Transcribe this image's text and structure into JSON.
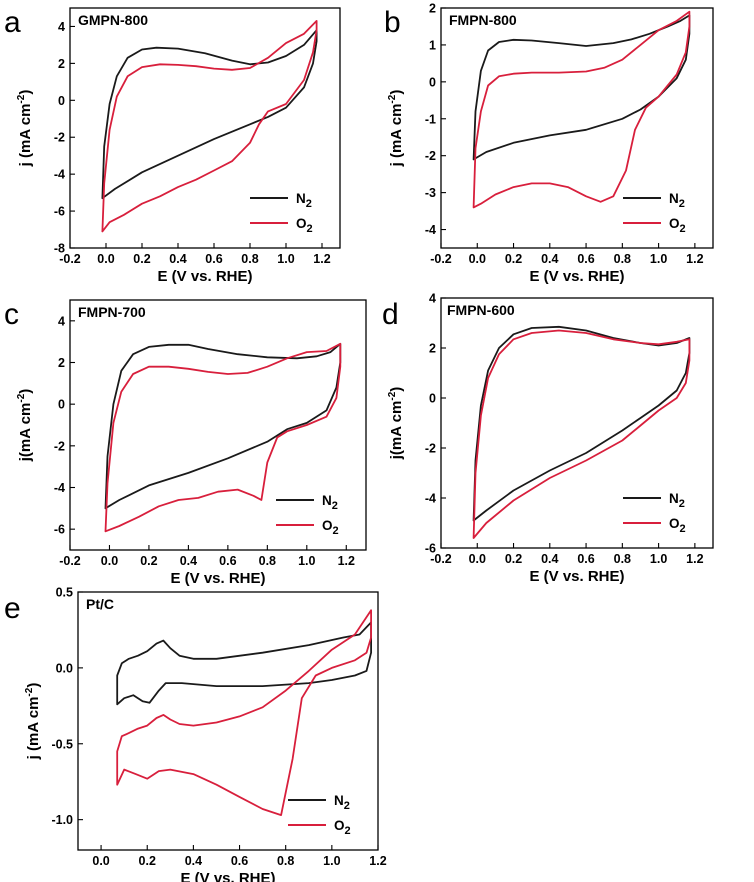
{
  "colors": {
    "N2": "#1a1a1a",
    "O2": "#d81f3c",
    "axis": "#000000"
  },
  "legend": {
    "N2": "N",
    "N2_sub": "2",
    "O2": "O",
    "O2_sub": "2"
  },
  "chart_data": [
    {
      "panel": "a",
      "type": "line",
      "title": "GMPN-800",
      "xlabel": "E (V vs. RHE)",
      "ylabel": "j (mA cm-2)",
      "xlim": [
        -0.2,
        1.3
      ],
      "ylim": [
        -8,
        5
      ],
      "xticks": [
        -0.2,
        0.0,
        0.2,
        0.4,
        0.6,
        0.8,
        1.0,
        1.2
      ],
      "xtick_labels": [
        "-0.2",
        "0.0",
        "0.2",
        "0.4",
        "0.6",
        "0.8",
        "1.0",
        "1.2"
      ],
      "yticks": [
        -8,
        -6,
        -4,
        -2,
        0,
        2,
        4
      ],
      "ytick_labels": [
        "-8",
        "-6",
        "-4",
        "-2",
        "0",
        "2",
        "4"
      ],
      "legend_position": "bottom-right",
      "series": [
        {
          "name": "N2",
          "color": "#1a1a1a",
          "x": [
            -0.02,
            -0.01,
            0.02,
            0.06,
            0.12,
            0.2,
            0.28,
            0.4,
            0.55,
            0.7,
            0.8,
            0.9,
            1.0,
            1.1,
            1.17,
            1.17,
            1.15,
            1.1,
            1.0,
            0.9,
            0.8,
            0.6,
            0.4,
            0.2,
            0.05,
            -0.02
          ],
          "y": [
            -5.3,
            -2.5,
            -0.2,
            1.3,
            2.3,
            2.75,
            2.85,
            2.8,
            2.55,
            2.15,
            1.95,
            2.05,
            2.4,
            3.0,
            3.8,
            3.2,
            2.0,
            0.7,
            -0.4,
            -0.9,
            -1.3,
            -2.1,
            -3.0,
            -3.9,
            -4.8,
            -5.3
          ]
        },
        {
          "name": "O2",
          "color": "#d81f3c",
          "x": [
            -0.02,
            -0.01,
            0.02,
            0.06,
            0.12,
            0.2,
            0.3,
            0.4,
            0.5,
            0.6,
            0.7,
            0.8,
            0.9,
            1.0,
            1.1,
            1.17,
            1.17,
            1.15,
            1.1,
            1.0,
            0.9,
            0.85,
            0.8,
            0.7,
            0.6,
            0.5,
            0.4,
            0.3,
            0.2,
            0.1,
            0.02,
            -0.02
          ],
          "y": [
            -7.1,
            -4.5,
            -1.6,
            0.2,
            1.3,
            1.8,
            1.95,
            1.92,
            1.85,
            1.72,
            1.65,
            1.75,
            2.3,
            3.1,
            3.6,
            4.3,
            3.8,
            2.6,
            1.1,
            -0.2,
            -0.6,
            -1.3,
            -2.3,
            -3.3,
            -3.8,
            -4.3,
            -4.7,
            -5.2,
            -5.6,
            -6.2,
            -6.6,
            -7.1
          ]
        }
      ]
    },
    {
      "panel": "b",
      "type": "line",
      "title": "FMPN-800",
      "xlabel": "E (V vs. RHE)",
      "ylabel": "j (mA cm-2)",
      "xlim": [
        -0.2,
        1.3
      ],
      "ylim": [
        -4.5,
        2
      ],
      "xticks": [
        -0.2,
        0.0,
        0.2,
        0.4,
        0.6,
        0.8,
        1.0,
        1.2
      ],
      "xtick_labels": [
        "-0.2",
        "0.0",
        "0.2",
        "0.4",
        "0.6",
        "0.8",
        "1.0",
        "1.2"
      ],
      "yticks": [
        -4,
        -3,
        -2,
        -1,
        0,
        1,
        2
      ],
      "ytick_labels": [
        "-4",
        "-3",
        "-2",
        "-1",
        "0",
        "1",
        "2"
      ],
      "legend_position": "bottom-right",
      "series": [
        {
          "name": "N2",
          "color": "#1a1a1a",
          "x": [
            -0.02,
            -0.01,
            0.02,
            0.06,
            0.12,
            0.2,
            0.3,
            0.45,
            0.6,
            0.75,
            0.85,
            0.95,
            1.05,
            1.12,
            1.17,
            1.17,
            1.15,
            1.1,
            1.0,
            0.9,
            0.8,
            0.6,
            0.4,
            0.2,
            0.05,
            -0.02
          ],
          "y": [
            -2.1,
            -0.8,
            0.3,
            0.85,
            1.08,
            1.14,
            1.12,
            1.05,
            0.97,
            1.05,
            1.15,
            1.3,
            1.5,
            1.65,
            1.8,
            1.3,
            0.6,
            0.1,
            -0.4,
            -0.75,
            -1.0,
            -1.3,
            -1.45,
            -1.65,
            -1.9,
            -2.1
          ]
        },
        {
          "name": "O2",
          "color": "#d81f3c",
          "x": [
            -0.02,
            -0.01,
            0.02,
            0.06,
            0.12,
            0.2,
            0.3,
            0.45,
            0.6,
            0.7,
            0.8,
            0.9,
            1.0,
            1.1,
            1.17,
            1.17,
            1.15,
            1.1,
            1.0,
            0.93,
            0.87,
            0.82,
            0.75,
            0.68,
            0.6,
            0.5,
            0.4,
            0.3,
            0.2,
            0.1,
            0.02,
            -0.02
          ],
          "y": [
            -3.4,
            -1.8,
            -0.8,
            -0.1,
            0.15,
            0.22,
            0.25,
            0.25,
            0.28,
            0.38,
            0.6,
            1.0,
            1.4,
            1.65,
            1.9,
            1.5,
            0.8,
            0.2,
            -0.4,
            -0.7,
            -1.3,
            -2.4,
            -3.1,
            -3.25,
            -3.1,
            -2.85,
            -2.75,
            -2.75,
            -2.85,
            -3.05,
            -3.3,
            -3.4
          ]
        }
      ]
    },
    {
      "panel": "c",
      "type": "line",
      "title": "FMPN-700",
      "xlabel": "E (V vs. RHE)",
      "ylabel": "j(mA cm-2)",
      "xlim": [
        -0.2,
        1.3
      ],
      "ylim": [
        -7,
        5
      ],
      "xticks": [
        -0.2,
        0.0,
        0.2,
        0.4,
        0.6,
        0.8,
        1.0,
        1.2
      ],
      "xtick_labels": [
        "-0.2",
        "0.0",
        "0.2",
        "0.4",
        "0.6",
        "0.8",
        "1.0",
        "1.2"
      ],
      "yticks": [
        -6,
        -4,
        -2,
        0,
        2,
        4
      ],
      "ytick_labels": [
        "-6",
        "-4",
        "-2",
        "0",
        "2",
        "4"
      ],
      "legend_position": "bottom-right",
      "series": [
        {
          "name": "N2",
          "color": "#1a1a1a",
          "x": [
            -0.02,
            -0.01,
            0.02,
            0.06,
            0.12,
            0.2,
            0.3,
            0.4,
            0.5,
            0.65,
            0.8,
            0.95,
            1.05,
            1.12,
            1.17,
            1.17,
            1.15,
            1.1,
            1.0,
            0.9,
            0.8,
            0.6,
            0.4,
            0.2,
            0.05,
            -0.02
          ],
          "y": [
            -5.0,
            -2.5,
            0.0,
            1.6,
            2.4,
            2.75,
            2.85,
            2.85,
            2.65,
            2.4,
            2.25,
            2.2,
            2.3,
            2.5,
            2.9,
            2.0,
            0.8,
            -0.3,
            -0.9,
            -1.2,
            -1.8,
            -2.6,
            -3.3,
            -3.9,
            -4.6,
            -5.0
          ]
        },
        {
          "name": "O2",
          "color": "#d81f3c",
          "x": [
            -0.02,
            -0.01,
            0.02,
            0.06,
            0.12,
            0.2,
            0.3,
            0.4,
            0.5,
            0.6,
            0.7,
            0.8,
            0.9,
            1.0,
            1.1,
            1.17,
            1.17,
            1.15,
            1.1,
            1.0,
            0.9,
            0.85,
            0.8,
            0.77,
            0.73,
            0.65,
            0.55,
            0.45,
            0.35,
            0.25,
            0.15,
            0.05,
            -0.02
          ],
          "y": [
            -6.1,
            -3.8,
            -0.9,
            0.6,
            1.45,
            1.8,
            1.8,
            1.7,
            1.55,
            1.45,
            1.5,
            1.8,
            2.2,
            2.5,
            2.55,
            2.9,
            1.8,
            0.3,
            -0.6,
            -1.0,
            -1.3,
            -1.6,
            -2.8,
            -4.6,
            -4.4,
            -4.1,
            -4.2,
            -4.5,
            -4.6,
            -4.9,
            -5.4,
            -5.85,
            -6.1
          ]
        }
      ]
    },
    {
      "panel": "d",
      "type": "line",
      "title": "FMPN-600",
      "xlabel": "E (V vs. RHE)",
      "ylabel": "j(mA cm-2)",
      "xlim": [
        -0.2,
        1.3
      ],
      "ylim": [
        -6,
        4
      ],
      "xticks": [
        -0.2,
        0.0,
        0.2,
        0.4,
        0.6,
        0.8,
        1.0,
        1.2
      ],
      "xtick_labels": [
        "-0.2",
        "0.0",
        "0.2",
        "0.4",
        "0.6",
        "0.8",
        "1.0",
        "1.2"
      ],
      "yticks": [
        -6,
        -4,
        -2,
        0,
        2,
        4
      ],
      "ytick_labels": [
        "-6",
        "-4",
        "-2",
        "0",
        "2",
        "4"
      ],
      "legend_position": "bottom-right",
      "series": [
        {
          "name": "N2",
          "color": "#1a1a1a",
          "x": [
            -0.02,
            -0.01,
            0.02,
            0.06,
            0.12,
            0.2,
            0.3,
            0.45,
            0.6,
            0.75,
            0.9,
            1.0,
            1.1,
            1.17,
            1.17,
            1.15,
            1.1,
            1.0,
            0.9,
            0.8,
            0.6,
            0.4,
            0.2,
            0.05,
            -0.02
          ],
          "y": [
            -4.9,
            -2.5,
            -0.3,
            1.1,
            2.0,
            2.55,
            2.8,
            2.85,
            2.7,
            2.4,
            2.2,
            2.1,
            2.2,
            2.4,
            1.8,
            1.0,
            0.3,
            -0.3,
            -0.8,
            -1.3,
            -2.2,
            -2.9,
            -3.7,
            -4.5,
            -4.9
          ]
        },
        {
          "name": "O2",
          "color": "#d81f3c",
          "x": [
            -0.02,
            -0.01,
            0.02,
            0.06,
            0.12,
            0.2,
            0.3,
            0.45,
            0.6,
            0.75,
            0.9,
            1.0,
            1.1,
            1.17,
            1.17,
            1.15,
            1.1,
            1.0,
            0.9,
            0.8,
            0.6,
            0.4,
            0.2,
            0.05,
            -0.02
          ],
          "y": [
            -5.6,
            -3.0,
            -0.7,
            0.8,
            1.75,
            2.35,
            2.6,
            2.7,
            2.6,
            2.35,
            2.2,
            2.15,
            2.25,
            2.35,
            1.5,
            0.6,
            0.0,
            -0.5,
            -1.1,
            -1.7,
            -2.5,
            -3.2,
            -4.1,
            -5.0,
            -5.6
          ]
        }
      ]
    },
    {
      "panel": "e",
      "type": "line",
      "title": "Pt/C",
      "xlabel": "E (V vs. RHE)",
      "ylabel": "j (mA cm-2)",
      "xlim": [
        -0.1,
        1.2
      ],
      "ylim": [
        -1.2,
        0.5
      ],
      "xticks": [
        0.0,
        0.2,
        0.4,
        0.6,
        0.8,
        1.0,
        1.2
      ],
      "xtick_labels": [
        "0.0",
        "0.2",
        "0.4",
        "0.6",
        "0.8",
        "1.0",
        "1.2"
      ],
      "yticks": [
        -1.0,
        -0.5,
        0.0,
        0.5
      ],
      "ytick_labels": [
        "-1.0",
        "-0.5",
        "0.0",
        "0.5"
      ],
      "legend_position": "bottom-right",
      "series": [
        {
          "name": "N2",
          "color": "#1a1a1a",
          "x": [
            0.07,
            0.07,
            0.09,
            0.12,
            0.16,
            0.2,
            0.24,
            0.27,
            0.3,
            0.34,
            0.4,
            0.5,
            0.7,
            0.9,
            1.05,
            1.12,
            1.17,
            1.17,
            1.15,
            1.1,
            1.0,
            0.9,
            0.7,
            0.5,
            0.35,
            0.28,
            0.25,
            0.21,
            0.18,
            0.14,
            0.1,
            0.07
          ],
          "y": [
            -0.24,
            -0.05,
            0.03,
            0.06,
            0.08,
            0.11,
            0.16,
            0.18,
            0.13,
            0.08,
            0.06,
            0.06,
            0.1,
            0.15,
            0.2,
            0.22,
            0.3,
            0.1,
            -0.02,
            -0.05,
            -0.08,
            -0.1,
            -0.12,
            -0.12,
            -0.1,
            -0.1,
            -0.15,
            -0.23,
            -0.22,
            -0.18,
            -0.2,
            -0.24
          ]
        },
        {
          "name": "O2",
          "color": "#d81f3c",
          "x": [
            0.07,
            0.07,
            0.09,
            0.12,
            0.16,
            0.2,
            0.24,
            0.27,
            0.3,
            0.34,
            0.4,
            0.5,
            0.6,
            0.7,
            0.8,
            0.9,
            1.0,
            1.1,
            1.17,
            1.17,
            1.15,
            1.1,
            1.0,
            0.93,
            0.87,
            0.83,
            0.78,
            0.7,
            0.6,
            0.5,
            0.4,
            0.3,
            0.25,
            0.2,
            0.15,
            0.1,
            0.07
          ],
          "y": [
            -0.77,
            -0.55,
            -0.45,
            -0.43,
            -0.4,
            -0.38,
            -0.33,
            -0.31,
            -0.34,
            -0.37,
            -0.38,
            -0.36,
            -0.32,
            -0.26,
            -0.15,
            -0.02,
            0.12,
            0.22,
            0.38,
            0.2,
            0.1,
            0.05,
            0.0,
            -0.05,
            -0.2,
            -0.6,
            -0.97,
            -0.93,
            -0.85,
            -0.77,
            -0.7,
            -0.67,
            -0.68,
            -0.73,
            -0.7,
            -0.67,
            -0.77
          ]
        }
      ]
    }
  ]
}
